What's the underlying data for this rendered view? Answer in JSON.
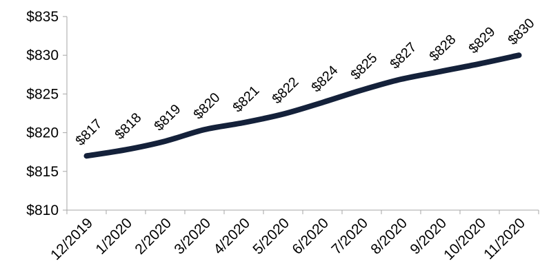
{
  "chart_data": {
    "type": "line",
    "categories": [
      "12/2019",
      "1/2020",
      "2/2020",
      "3/2020",
      "4/2020",
      "5/2020",
      "6/2020",
      "7/2020",
      "8/2020",
      "9/2020",
      "10/2020",
      "11/2020"
    ],
    "series": [
      {
        "values": [
          817,
          817.8,
          818.9,
          820.4,
          821.3,
          822.4,
          823.9,
          825.5,
          826.9,
          827.9,
          828.9,
          830
        ],
        "labels": [
          "$817",
          "$818",
          "$819",
          "$820",
          "$821",
          "$822",
          "$824",
          "$825",
          "$827",
          "$828",
          "$829",
          "$830"
        ]
      }
    ],
    "yticks": [
      810,
      815,
      820,
      825,
      830,
      835
    ],
    "ytick_labels": [
      "$810",
      "$815",
      "$820",
      "$825",
      "$830",
      "$835"
    ],
    "ylim": [
      810,
      835
    ],
    "grid": false,
    "line_color": "#14213a",
    "axis_color": "#a6a6a6"
  }
}
